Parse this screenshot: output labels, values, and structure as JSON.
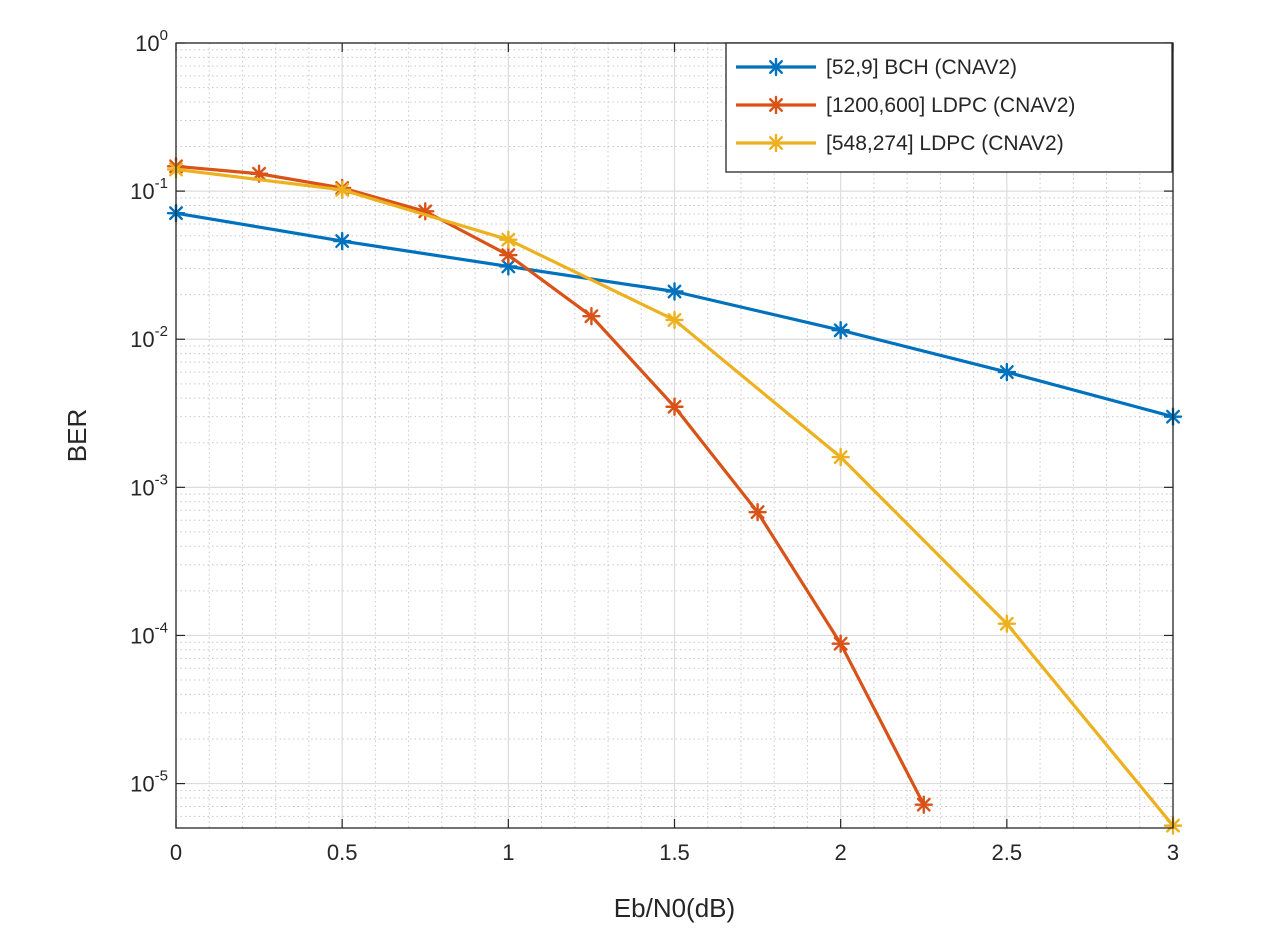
{
  "chart_data": {
    "type": "line",
    "xlabel": "Eb/N0(dB)",
    "ylabel": "BER",
    "xlim": [
      0,
      3
    ],
    "ylim_log10": [
      -5.3,
      0
    ],
    "y_scale": "log",
    "grid": true,
    "minor_grid": true,
    "legend_position": "top-right",
    "x_ticks": [
      "0",
      "0.5",
      "1",
      "1.5",
      "2",
      "2.5",
      "3"
    ],
    "y_ticks": [
      {
        "base": "10",
        "exp": "0"
      },
      {
        "base": "10",
        "exp": "-1"
      },
      {
        "base": "10",
        "exp": "-2"
      },
      {
        "base": "10",
        "exp": "-3"
      },
      {
        "base": "10",
        "exp": "-4"
      },
      {
        "base": "10",
        "exp": "-5"
      }
    ],
    "series": [
      {
        "name": "[52,9] BCH (CNAV2)",
        "color": "#0072BD",
        "x": [
          0,
          0.5,
          1,
          1.5,
          2,
          2.5,
          3
        ],
        "y": [
          0.071,
          0.046,
          0.031,
          0.021,
          0.0115,
          0.006,
          0.003
        ]
      },
      {
        "name": "[1200,600] LDPC (CNAV2)",
        "color": "#D95319",
        "x": [
          0,
          0.25,
          0.5,
          0.75,
          1,
          1.25,
          1.5,
          1.75,
          2,
          2.25
        ],
        "y": [
          0.147,
          0.131,
          0.105,
          0.073,
          0.037,
          0.0143,
          0.0035,
          0.00068,
          8.8e-05,
          7.2e-06
        ]
      },
      {
        "name": "[548,274] LDPC (CNAV2)",
        "color": "#EDB120",
        "x": [
          0,
          0.5,
          1,
          1.5,
          2,
          2.5,
          3
        ],
        "y": [
          0.14,
          0.102,
          0.047,
          0.0135,
          0.0016,
          0.00012,
          5.2e-06
        ]
      }
    ]
  }
}
